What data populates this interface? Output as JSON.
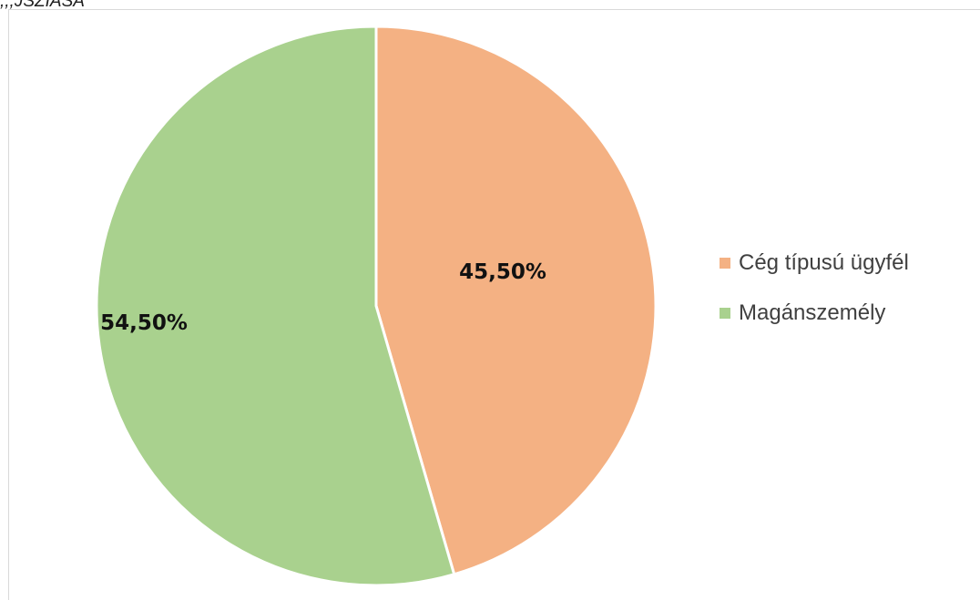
{
  "caption": ",,,JSZIASA",
  "chart_data": {
    "type": "pie",
    "slices": [
      {
        "name": "Cég típusú ügyfél",
        "value": 45.5,
        "label": "45,50%",
        "color": "#F4B183"
      },
      {
        "name": "Magánszemély",
        "value": 54.5,
        "label": "54,50%",
        "color": "#A9D18E"
      }
    ],
    "start_angle_deg": 0,
    "direction": "clockwise",
    "legend_position": "right",
    "data_labels": true
  }
}
